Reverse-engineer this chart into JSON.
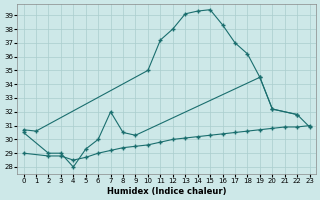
{
  "xlabel": "Humidex (Indice chaleur)",
  "bg_color": "#cde8e8",
  "grid_color": "#aacece",
  "line_color": "#1a6e6e",
  "xlim": [
    -0.5,
    23.5
  ],
  "ylim": [
    27.5,
    39.8
  ],
  "yticks": [
    28,
    29,
    30,
    31,
    32,
    33,
    34,
    35,
    36,
    37,
    38,
    39
  ],
  "xticks": [
    0,
    1,
    2,
    3,
    4,
    5,
    6,
    7,
    8,
    9,
    10,
    11,
    12,
    13,
    14,
    15,
    16,
    17,
    18,
    19,
    20,
    21,
    22,
    23
  ],
  "curve1_x": [
    0,
    1,
    10,
    11,
    12,
    13,
    14,
    15,
    16,
    17,
    18,
    19,
    20,
    22
  ],
  "curve1_y": [
    30.7,
    30.6,
    35.0,
    37.2,
    38.0,
    39.1,
    39.3,
    39.4,
    38.3,
    37.0,
    36.2,
    34.5,
    32.2,
    31.8
  ],
  "curve2_x": [
    0,
    2,
    3,
    4,
    5,
    6,
    7,
    8,
    9,
    19,
    20,
    22,
    23
  ],
  "curve2_y": [
    30.5,
    29.0,
    29.0,
    28.0,
    29.3,
    30.0,
    32.0,
    30.5,
    30.3,
    34.5,
    32.2,
    31.8,
    30.9
  ],
  "curve3_x": [
    0,
    2,
    3,
    4,
    5,
    6,
    7,
    8,
    9,
    10,
    11,
    12,
    13,
    14,
    15,
    16,
    17,
    18,
    19,
    20,
    21,
    22,
    23
  ],
  "curve3_y": [
    29.0,
    28.8,
    28.8,
    28.5,
    28.7,
    29.0,
    29.2,
    29.4,
    29.5,
    29.6,
    29.8,
    30.0,
    30.1,
    30.2,
    30.3,
    30.4,
    30.5,
    30.6,
    30.7,
    30.8,
    30.9,
    30.9,
    31.0
  ]
}
